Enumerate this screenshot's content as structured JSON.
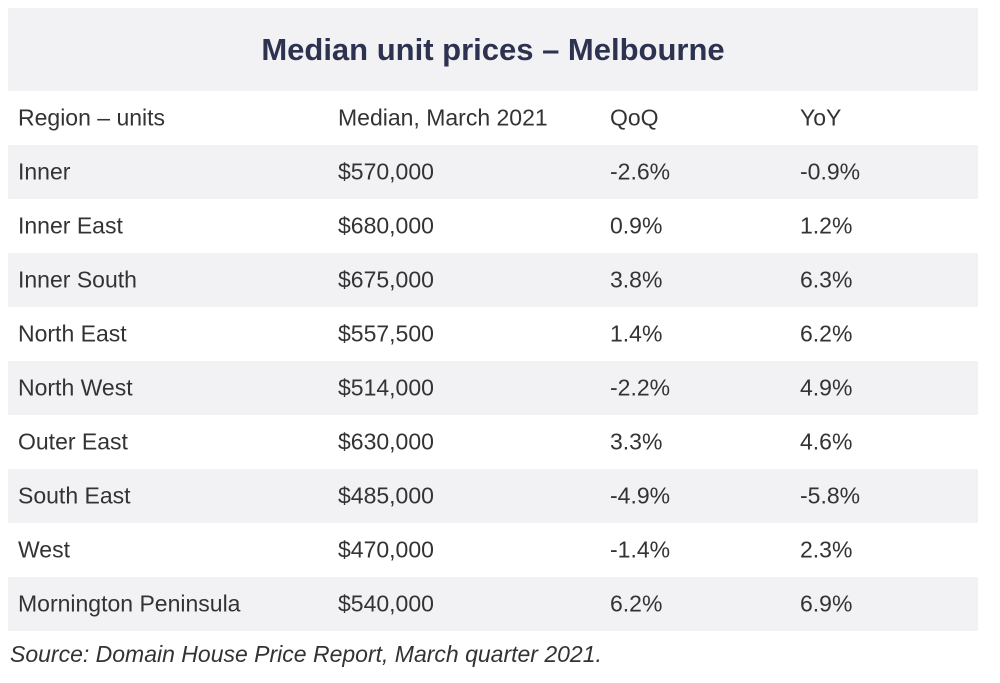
{
  "chart_data": {
    "type": "table",
    "title": "Median unit prices – Melbourne",
    "columns": [
      "Region – units",
      "Median, March 2021",
      "QoQ",
      "YoY"
    ],
    "rows": [
      [
        "Inner",
        "$570,000",
        "-2.6%",
        "-0.9%"
      ],
      [
        "Inner East",
        "$680,000",
        "0.9%",
        "1.2%"
      ],
      [
        "Inner South",
        "$675,000",
        "3.8%",
        "6.3%"
      ],
      [
        "North East",
        "$557,500",
        "1.4%",
        "6.2%"
      ],
      [
        "North West",
        "$514,000",
        "-2.2%",
        "4.9%"
      ],
      [
        "Outer East",
        "$630,000",
        "3.3%",
        "4.6%"
      ],
      [
        "South East",
        "$485,000",
        "-4.9%",
        "-5.8%"
      ],
      [
        "West",
        "$470,000",
        "-1.4%",
        "2.3%"
      ],
      [
        "Mornington Peninsula",
        "$540,000",
        "6.2%",
        "6.9%"
      ]
    ],
    "source": "Source: Domain House Price Report, March quarter 2021."
  },
  "colors": {
    "title": "#2d3250",
    "band": "#f2f2f5",
    "text": "#333333"
  }
}
